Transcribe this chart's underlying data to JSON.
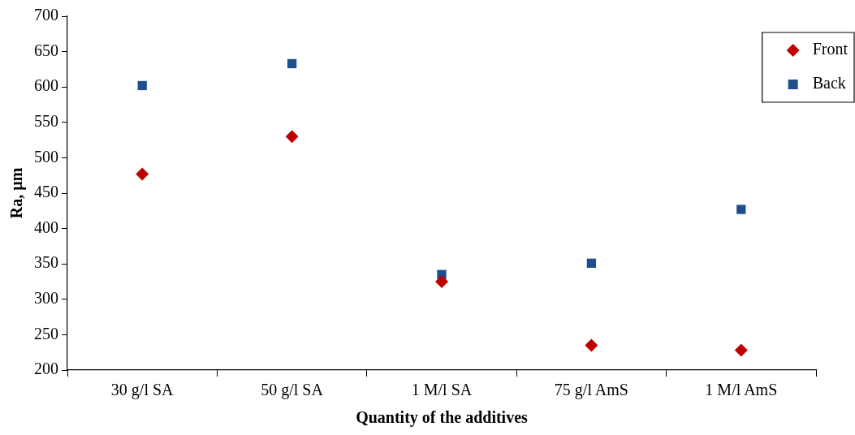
{
  "chart_data": {
    "type": "scatter",
    "xlabel": "Quantity of the additives",
    "ylabel": "Ra, µm",
    "categories": [
      "30 g/l SA",
      "50 g/l SA",
      "1 M/l SA",
      "75 g/l AmS",
      "1 M/l AmS"
    ],
    "series": [
      {
        "name": "Front",
        "color": "#c00000",
        "marker": "diamond",
        "values": [
          477,
          530,
          325,
          235,
          228
        ]
      },
      {
        "name": "Back",
        "color": "#1f4e8c",
        "marker": "square",
        "values": [
          602,
          633,
          335,
          351,
          427
        ]
      }
    ],
    "ylim": [
      200,
      700
    ],
    "yticks": [
      200,
      250,
      300,
      350,
      400,
      450,
      500,
      550,
      600,
      650,
      700
    ],
    "grid": false,
    "legend": "top right"
  }
}
